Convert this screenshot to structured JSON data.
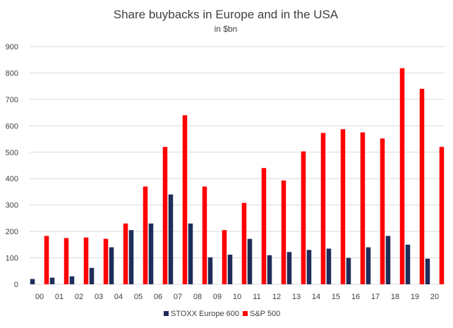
{
  "chart_data": {
    "type": "bar",
    "title": "Share buybacks in Europe and in the USA",
    "subtitle": "in $bn",
    "categories": [
      "00",
      "01",
      "02",
      "03",
      "04",
      "05",
      "06",
      "07",
      "08",
      "09",
      "10",
      "11",
      "12",
      "13",
      "14",
      "15",
      "16",
      "17",
      "18",
      "19",
      "20"
    ],
    "series": [
      {
        "name": "STOXX Europe 600",
        "color": "#1f2d5a",
        "values": [
          20,
          25,
          30,
          62,
          140,
          205,
          230,
          340,
          230,
          102,
          112,
          172,
          110,
          122,
          130,
          135,
          100,
          140,
          183,
          150,
          97
        ]
      },
      {
        "name": "S&P 500",
        "color": "#ff0000",
        "values": [
          183,
          175,
          177,
          172,
          230,
          370,
          520,
          640,
          370,
          205,
          308,
          440,
          393,
          503,
          573,
          587,
          575,
          552,
          818,
          740,
          520
        ]
      }
    ],
    "ylim": [
      0,
      900
    ],
    "yticks": [
      0,
      100,
      200,
      300,
      400,
      500,
      600,
      700,
      800,
      900
    ],
    "grid": true,
    "legend": "bottom"
  }
}
